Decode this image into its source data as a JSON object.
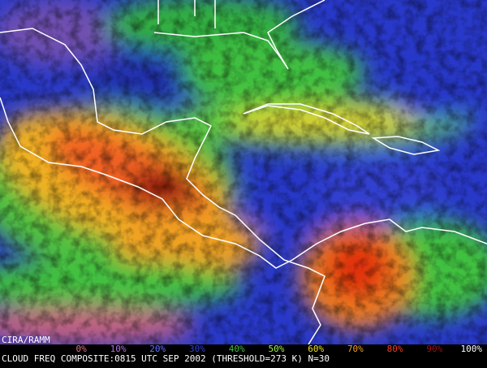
{
  "credit": "CIRA/RAMM",
  "legend": {
    "labels": [
      "0%",
      "10%",
      "20%",
      "30%",
      "40%",
      "50%",
      "60%",
      "70%",
      "80%",
      "90%",
      "100%"
    ],
    "colors": [
      "#e07080",
      "#b070e0",
      "#6070ff",
      "#3040d0",
      "#40c040",
      "#a0f040",
      "#f0e020",
      "#f0a020",
      "#f04020",
      "#a01010",
      "#ffffff"
    ]
  },
  "caption": "CLOUD FREQ COMPOSITE:0815 UTC SEP 2002 (THRESHOLD=273 K) N=30"
}
